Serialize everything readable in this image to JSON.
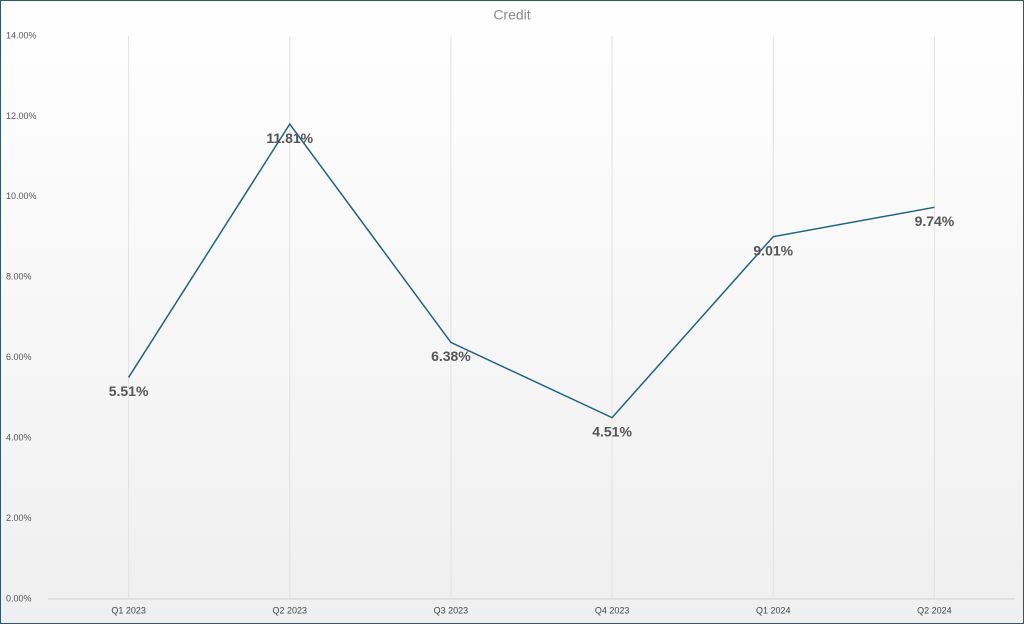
{
  "chart_data": {
    "type": "line",
    "title": "Credit",
    "categories": [
      "Q1 2023",
      "Q2 2023",
      "Q3 2023",
      "Q4 2023",
      "Q1 2024",
      "Q2 2024"
    ],
    "series": [
      {
        "name": "Credit",
        "color": "#1f6482",
        "values": [
          5.51,
          11.81,
          6.38,
          4.51,
          9.01,
          9.74
        ],
        "value_labels": [
          "5.51%",
          "11.81%",
          "6.38%",
          "4.51%",
          "9.01%",
          "9.74%"
        ]
      }
    ],
    "ylim": [
      0,
      14
    ],
    "yticks": [
      {
        "value": 0,
        "label": "0.00%"
      },
      {
        "value": 2,
        "label": "2.00%"
      },
      {
        "value": 4,
        "label": "4.00%"
      },
      {
        "value": 6,
        "label": "6.00%"
      },
      {
        "value": 8,
        "label": "8.00%"
      },
      {
        "value": 10,
        "label": "10.00%"
      },
      {
        "value": 12,
        "label": "12.00%"
      },
      {
        "value": 14,
        "label": "14.00%"
      }
    ],
    "grid": true
  }
}
